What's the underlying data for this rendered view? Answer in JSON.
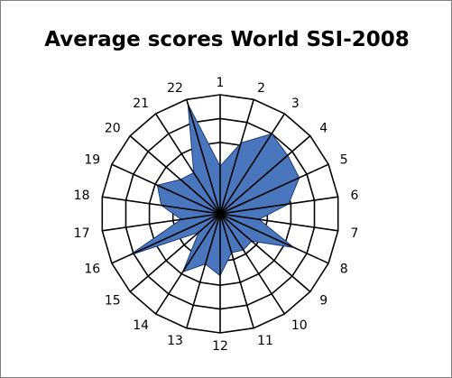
{
  "chart_data": {
    "type": "radar",
    "title": "Average scores World SSI-2008",
    "categories": [
      "1",
      "2",
      "3",
      "4",
      "5",
      "6",
      "7",
      "8",
      "9",
      "10",
      "11",
      "12",
      "13",
      "14",
      "15",
      "16",
      "17",
      "18",
      "19",
      "20",
      "21",
      "22"
    ],
    "values": [
      4.0,
      6.2,
      8.0,
      7.5,
      7.3,
      5.8,
      3.3,
      6.8,
      3.5,
      3.6,
      3.4,
      5.2,
      4.4,
      5.8,
      2.4,
      8.4,
      3.3,
      5.0,
      5.8,
      4.4,
      4.1,
      9.6
    ],
    "rlim": [
      0,
      10
    ],
    "rings": 5,
    "fill_color": "#4A76BE",
    "stroke_color": "#1F3F7A",
    "grid": true,
    "legend": "none"
  }
}
